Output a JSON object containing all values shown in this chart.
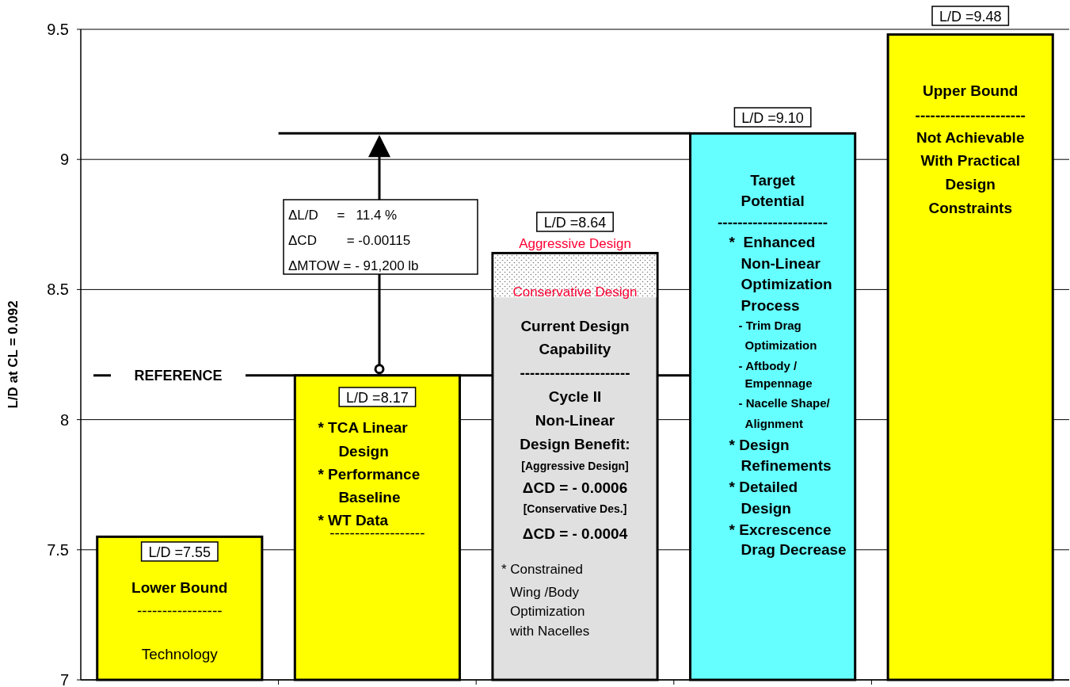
{
  "chart_data": {
    "type": "bar",
    "ylabel": "L/D at CL = 0.092",
    "categories": [
      null,
      null,
      null,
      null,
      null
    ],
    "values": [
      7.55,
      8.17,
      8.64,
      9.1,
      9.48
    ],
    "colors": [
      "#ffff00",
      "#ffff00",
      "#e0e0e0",
      "#66ffff",
      "#ffff00"
    ],
    "value_labels": [
      "L/D =7.55",
      "L/D =8.17",
      "L/D =8.64",
      "L/D =9.10",
      "L/D =9.48"
    ],
    "ylim": [
      7,
      9.5
    ],
    "yticks": [
      7,
      7.5,
      8,
      8.5,
      9,
      9.5
    ],
    "grid": "y",
    "ref_lines": [
      {
        "axis": "y",
        "value": 8.17,
        "label": "REFERENCE"
      },
      {
        "axis": "y",
        "value": 9.1,
        "label": null
      }
    ],
    "annotations": [
      "Lower Bound",
      "-----------------",
      "Technology",
      "* TCA Linear",
      "Design",
      "* Performance",
      "Baseline",
      "* WT Data",
      "-------------------",
      "Current Design",
      "Capability",
      "----------------------",
      "Cycle II",
      "Non-Linear",
      "Design Benefit:",
      "[Aggressive Design]",
      "ΔCD = - 0.0006",
      "[Conservative Des.]",
      "ΔCD = - 0.0004",
      "* Constrained",
      "Wing /Body",
      "Optimization",
      "with Nacelles",
      "Aggressive Design",
      "Conservative Design",
      "Target",
      "Potential",
      "----------------------",
      "*  Enhanced",
      "Non-Linear",
      "Optimization",
      "Process",
      "- Trim Drag",
      "Optimization",
      "- Aftbody /",
      "Empennage",
      "- Nacelle Shape/",
      "Alignment",
      "* Design",
      "Refinements",
      "* Detailed",
      "Design",
      "* Excrescence",
      "Drag Decrease",
      "Upper Bound",
      "----------------------",
      "Not Achievable",
      "With Practical",
      "Design",
      "Constraints",
      "ΔL/D     =   11.4 %",
      "ΔCD        = -0.00115",
      "ΔMTOW = - 91,200 lb"
    ]
  }
}
